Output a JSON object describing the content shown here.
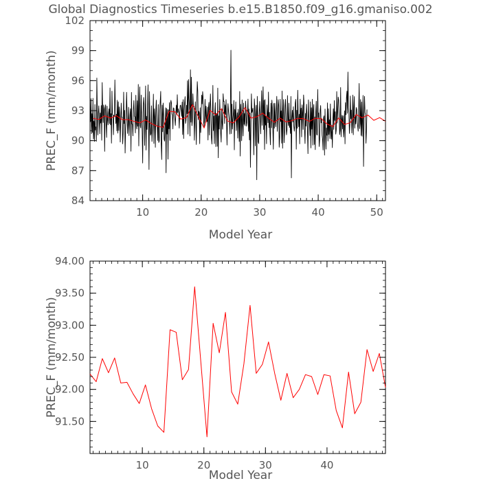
{
  "title": "Global Diagnostics Timeseries b.e15.B1850.f09_g16.gmaniso.002",
  "colors": {
    "monthly": "#000000",
    "annual": "#ff0000",
    "frame": "#000000",
    "text": "#555555"
  },
  "chart_data": [
    {
      "type": "line",
      "name": "monthly-panel",
      "title": "Global Diagnostics Timeseries b.e15.B1850.f09_g16.gmaniso.002",
      "xlabel": "Model Year",
      "ylabel": "PREC_F (mm/month)",
      "xlim": [
        1,
        51.5
      ],
      "ylim": [
        84,
        102
      ],
      "xticks": [
        10,
        20,
        30,
        40,
        50
      ],
      "xtick_labels": [
        "10",
        "20",
        "30",
        "40",
        "50"
      ],
      "yticks": [
        84,
        87,
        90,
        93,
        96,
        99,
        102
      ],
      "ytick_labels": [
        "84",
        "87",
        "90",
        "93",
        "96",
        "99",
        "102"
      ],
      "series": [
        {
          "name": "monthly",
          "color": "#000000",
          "note": "612 monthly values, start year 1.0, step 1/12 year (approximated from the plot)",
          "start": 1.0,
          "step": 0.0833333,
          "values": [
            92.25,
            91.89,
            94.2,
            90.7,
            92.69,
            90.82,
            94.23,
            90.17,
            91.94,
            89.92,
            93.62,
            91.06,
            91.37,
            89.93,
            96.26,
            92.75,
            90.57,
            92.75,
            93.48,
            92.12,
            90.69,
            92.77,
            91.76,
            93.51,
            90.04,
            95.81,
            92.8,
            91.81,
            93.56,
            93.12,
            88.93,
            93.23,
            93.58,
            91.7,
            90.32,
            93.45,
            92.12,
            91.57,
            92.73,
            93.18,
            91.7,
            95.27,
            91.59,
            92.7,
            89.75,
            94.95,
            92.61,
            92.56,
            90.59,
            92.55,
            92.4,
            96.07,
            93.17,
            91.71,
            92.64,
            90.97,
            94.04,
            90.75,
            93.88,
            91.01,
            93.37,
            92.34,
            89.86,
            92.16,
            93.75,
            92.32,
            92.36,
            89.68,
            90.75,
            94.85,
            91.7,
            93.03,
            88.76,
            91.25,
            92.39,
            94.83,
            92.82,
            90.72,
            91.71,
            93.34,
            90.5,
            91.75,
            92.62,
            93.19,
            88.94,
            94.82,
            91.67,
            91.64,
            90.48,
            93.07,
            94.01,
            92.44,
            92.39,
            90.77,
            94.54,
            91.75,
            91.17,
            93.99,
            91.44,
            95.62,
            89.47,
            92.99,
            95.37,
            91.49,
            91.26,
            94.56,
            92.27,
            90.94,
            87.76,
            92.87,
            94.32,
            93.54,
            89.52,
            91.73,
            95.47,
            89.06,
            92.44,
            91.12,
            93.08,
            95.58,
            91.77,
            87.12,
            94.91,
            91.39,
            90.54,
            90.69,
            93.48,
            89.92,
            91.07,
            92.12,
            94.65,
            89.72,
            93.18,
            92.4,
            89.33,
            93.09,
            94.05,
            91.58,
            91.43,
            90.02,
            93.61,
            89.81,
            89.97,
            92.94,
            93.91,
            94.93,
            89.75,
            88.11,
            93.55,
            90.89,
            93.76,
            92.52,
            90.12,
            89.95,
            91.63,
            93.29,
            86.79,
            93.23,
            90.66,
            93.11,
            88.15,
            93.09,
            91.18,
            93.81,
            90.02,
            93.59,
            94.03,
            93.73,
            92.67,
            92.55,
            91.17,
            93.28,
            93.23,
            92.55,
            92.17,
            91.52,
            92.74,
            93.55,
            92.6,
            94.59,
            92.8,
            93.18,
            92.79,
            91.25,
            92.79,
            93.52,
            93.55,
            93.12,
            92.43,
            93.86,
            90.61,
            94.1,
            90.21,
            93.01,
            93.81,
            94.4,
            91.72,
            92.05,
            93.54,
            92.67,
            95.98,
            90.65,
            96.11,
            94.24,
            93.47,
            90.47,
            97.08,
            91.85,
            96.34,
            91.48,
            91.97,
            94.68,
            93.37,
            93.44,
            90.04,
            92.27,
            93.89,
            91.72,
            89.61,
            93.88,
            95.9,
            94.88,
            92.1,
            92.94,
            92.8,
            89.69,
            93.29,
            90.81,
            92.21,
            94.55,
            93.67,
            94.9,
            94.22,
            91.94,
            91.38,
            92.38,
            94.13,
            91.75,
            93.45,
            92.1,
            91.91,
            93.35,
            90.06,
            93.34,
            93.84,
            90.56,
            93.16,
            94.67,
            92.84,
            90.33,
            89.66,
            91.99,
            95.53,
            91.0,
            92.45,
            89.7,
            92.95,
            93.8,
            89.4,
            92.73,
            92.69,
            89.43,
            95.25,
            88.29,
            92.48,
            91.16,
            94.12,
            92.59,
            90.75,
            89.85,
            93.21,
            91.75,
            91.14,
            94.69,
            93.93,
            93.94,
            91.71,
            93.57,
            92.61,
            94.1,
            91.95,
            89.56,
            92.48,
            93.7,
            92.94,
            92.39,
            91.81,
            90.66,
            93.68,
            99.04,
            90.7,
            93.66,
            91.16,
            92.08,
            92.72,
            94.02,
            89.08,
            93.12,
            92.09,
            93.88,
            91.01,
            92.13,
            92.79,
            90.25,
            93.14,
            92.34,
            89.92,
            94.92,
            88.46,
            93.64,
            92.69,
            89.99,
            94.08,
            91.62,
            90.47,
            93.76,
            91.63,
            92.73,
            91.49,
            93.96,
            93.18,
            91.45,
            91.76,
            92.88,
            94.15,
            90.93,
            93.17,
            90.07,
            92.78,
            87.33,
            91.19,
            94.68,
            92.81,
            92.98,
            93.24,
            90.88,
            88.58,
            94.18,
            93.33,
            89.48,
            92.64,
            93.54,
            86.09,
            94.43,
            92.88,
            89.89,
            89.7,
            92.66,
            93.92,
            92.46,
            90.68,
            92.86,
            95.0,
            91.53,
            93.07,
            95.38,
            91.11,
            94.03,
            89.12,
            94.11,
            91.55,
            92.45,
            89.69,
            93.57,
            92.7,
            91.79,
            94.86,
            91.3,
            92.82,
            90.71,
            89.58,
            93.75,
            91.29,
            94.05,
            93.3,
            91.11,
            89.14,
            93.72,
            91.25,
            93.74,
            92.02,
            91.39,
            93.05,
            94.43,
            90.93,
            92.24,
            94.1,
            93.54,
            89.34,
            90.32,
            94.14,
            91.92,
            92.98,
            89.75,
            94.96,
            89.24,
            92.75,
            94.11,
            89.8,
            90.82,
            93.47,
            94.13,
            92.02,
            90.58,
            91.08,
            94.51,
            92.01,
            91.51,
            93.75,
            91.32,
            92.1,
            90.72,
            94.42,
            86.28,
            92.27,
            93.04,
            91.86,
            93.4,
            91.44,
            90.94,
            91.59,
            93.75,
            94.13,
            89.14,
            93.04,
            91.24,
            95.04,
            92.65,
            91.39,
            92.64,
            89.68,
            94.15,
            92.09,
            93.25,
            90.37,
            93.58,
            92.85,
            91.12,
            94.57,
            93.7,
            91.06,
            89.71,
            92.73,
            91.45,
            93.64,
            92.71,
            90.94,
            88.7,
            94.08,
            92.34,
            91.64,
            90.51,
            93.88,
            89.27,
            93.29,
            91.15,
            94.14,
            89.55,
            93.11,
            93.62,
            89.62,
            92.38,
            89.1,
            92.82,
            93.94,
            90.62,
            90.55,
            95.12,
            92.32,
            92.77,
            89.41,
            90.12,
            92.98,
            93.51,
            91.78,
            92.21,
            90.54,
            90.13,
            89.06,
            92.26,
            92.48,
            88.55,
            93.16,
            90.81,
            89.15,
            91.27,
            90.54,
            93.78,
            89.96,
            93.18,
            90.62,
            92.09,
            90.21,
            93.67,
            91.05,
            90.15,
            91.56,
            89.3,
            92.04,
            93.19,
            91.12,
            94.01,
            92.02,
            92.89,
            90.65,
            91.07,
            94.91,
            91.75,
            92.95,
            94.36,
            94.05,
            92.35,
            90.6,
            91.04,
            95.31,
            90.39,
            92.02,
            92.54,
            91.17,
            92.48,
            90.36,
            91.08,
            92.98,
            89.68,
            93.8,
            92.59,
            94.32,
            94.95,
            92.73,
            96.86,
            93.29,
            92.76,
            90.72,
            91.63,
            94.46,
            92.2,
            93.06,
            90.76,
            91.82,
            94.56,
            90.59,
            93.28,
            94.41,
            91.25,
            92.53,
            91.66,
            93.31,
            93.13,
            91.84,
            91.46,
            90.94,
            92.85,
            95.72,
            91.19,
            91.71,
            94.11,
            90.52,
            93.86,
            90.44,
            92.29,
            94.52,
            87.42,
            92.36,
            94.43,
            92.78,
            92.65,
            89.74,
            91.0,
            93.11
          ]
        },
        {
          "name": "annual-mean",
          "color": "#ff0000",
          "start": 1.5,
          "step": 1,
          "values": [
            92.24,
            92.12,
            92.48,
            92.26,
            92.49,
            92.1,
            92.11,
            91.93,
            91.78,
            92.07,
            91.7,
            91.43,
            91.33,
            92.93,
            92.89,
            92.15,
            92.31,
            93.6,
            92.43,
            91.26,
            93.03,
            92.57,
            93.2,
            91.96,
            91.77,
            92.4,
            93.31,
            92.25,
            92.39,
            92.74,
            92.25,
            91.83,
            92.25,
            91.87,
            92.0,
            92.23,
            92.2,
            91.92,
            92.23,
            92.21,
            91.67,
            91.4,
            92.27,
            91.62,
            91.8,
            92.62,
            92.28,
            92.56,
            92.03,
            92.3,
            91.94
          ]
        }
      ]
    },
    {
      "type": "line",
      "name": "annual-panel",
      "xlabel": "Model Year",
      "ylabel": "PREC_F (mm/month)",
      "xlim": [
        1.5,
        49.5
      ],
      "ylim": [
        91.0,
        94.0
      ],
      "xticks": [
        10,
        20,
        30,
        40
      ],
      "xtick_labels": [
        "10",
        "20",
        "30",
        "40"
      ],
      "yticks": [
        91.5,
        92.0,
        92.5,
        93.0,
        93.5,
        94.0
      ],
      "ytick_labels": [
        "91.50",
        "92.00",
        "92.50",
        "93.00",
        "93.50",
        "94.00"
      ],
      "series": [
        {
          "name": "annual-mean",
          "color": "#ff0000",
          "x": [
            1.5,
            2.5,
            3.5,
            4.5,
            5.5,
            6.5,
            7.5,
            8.5,
            9.5,
            10.5,
            11.5,
            12.5,
            13.5,
            14.5,
            15.5,
            16.5,
            17.5,
            18.5,
            19.5,
            20.5,
            21.5,
            22.5,
            23.5,
            24.5,
            25.5,
            26.5,
            27.5,
            28.5,
            29.5,
            30.5,
            31.5,
            32.5,
            33.5,
            34.5,
            35.5,
            36.5,
            37.5,
            38.5,
            39.5,
            40.5,
            41.5,
            42.5,
            43.5,
            44.5,
            45.5,
            46.5,
            47.5,
            48.5,
            49.5
          ],
          "values": [
            92.24,
            92.12,
            92.48,
            92.26,
            92.49,
            92.1,
            92.11,
            91.93,
            91.78,
            92.07,
            91.7,
            91.43,
            91.33,
            92.93,
            92.89,
            92.15,
            92.31,
            93.6,
            92.43,
            91.26,
            93.03,
            92.57,
            93.2,
            91.96,
            91.77,
            92.4,
            93.31,
            92.25,
            92.39,
            92.74,
            92.25,
            91.83,
            92.25,
            91.87,
            92.0,
            92.23,
            92.2,
            91.92,
            92.23,
            92.21,
            91.67,
            91.4,
            92.27,
            91.62,
            91.8,
            92.62,
            92.28,
            92.56,
            92.03
          ]
        }
      ]
    }
  ]
}
